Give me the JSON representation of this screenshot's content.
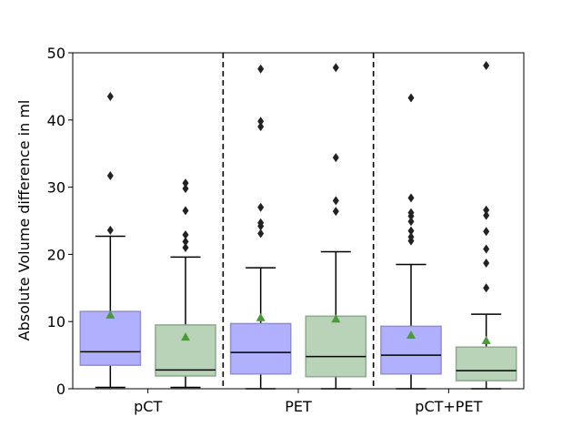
{
  "chart_data": {
    "type": "box",
    "title": "",
    "xlabel": "",
    "ylabel": "Absolute Volume difference in ml",
    "ylim": [
      0,
      50
    ],
    "yticks": [
      0,
      10,
      20,
      30,
      40,
      50
    ],
    "grid": false,
    "groups": [
      "pCT",
      "PET",
      "pCT+PET"
    ],
    "group_separators": "dashed vertical lines between groups",
    "box_colors": [
      "#b0b0ff",
      "#b9d3b9"
    ],
    "box_edge_colors": [
      "#8f8fcf",
      "#8fa88f"
    ],
    "median_color": "#000000",
    "mean_marker_color": "#4a9a3a",
    "outlier_color": "#222222",
    "boxes": [
      {
        "group": "pCT",
        "color_index": 0,
        "whisker_low": 0.2,
        "q1": 3.5,
        "median": 5.5,
        "q3": 11.5,
        "whisker_high": 22.7,
        "mean": 11.0,
        "outliers": [
          23.6,
          31.7,
          43.5
        ]
      },
      {
        "group": "pCT",
        "color_index": 1,
        "whisker_low": 0.2,
        "q1": 1.9,
        "median": 2.8,
        "q3": 9.5,
        "whisker_high": 19.6,
        "mean": 7.7,
        "outliers": [
          21.0,
          21.9,
          22.9,
          26.5,
          29.8,
          30.6
        ]
      },
      {
        "group": "PET",
        "color_index": 0,
        "whisker_low": 0.0,
        "q1": 2.2,
        "median": 5.4,
        "q3": 9.7,
        "whisker_high": 18.0,
        "mean": 10.6,
        "outliers": [
          23.1,
          24.2,
          24.7,
          27.0,
          39.0,
          39.8,
          47.6
        ]
      },
      {
        "group": "PET",
        "color_index": 1,
        "whisker_low": 0.0,
        "q1": 1.8,
        "median": 4.8,
        "q3": 10.8,
        "whisker_high": 20.4,
        "mean": 10.4,
        "outliers": [
          26.4,
          28.0,
          34.4,
          47.8
        ]
      },
      {
        "group": "pCT+PET",
        "color_index": 0,
        "whisker_low": 0.0,
        "q1": 2.2,
        "median": 5.0,
        "q3": 9.3,
        "whisker_high": 18.5,
        "mean": 8.0,
        "outliers": [
          22.0,
          22.6,
          23.5,
          24.9,
          25.7,
          26.2,
          28.4,
          43.3
        ]
      },
      {
        "group": "pCT+PET",
        "color_index": 1,
        "whisker_low": 0.0,
        "q1": 1.2,
        "median": 2.7,
        "q3": 6.2,
        "whisker_high": 11.1,
        "mean": 7.2,
        "outliers": [
          15.0,
          18.7,
          20.8,
          23.4,
          25.8,
          26.6,
          48.1
        ]
      }
    ]
  }
}
